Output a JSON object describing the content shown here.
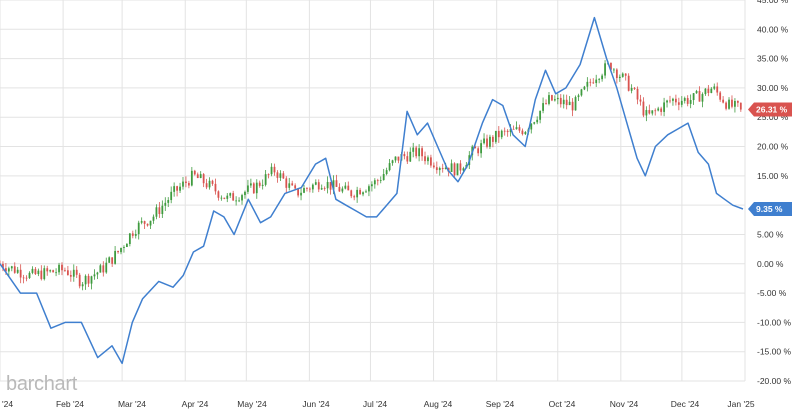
{
  "watermark": "barchart",
  "colors": {
    "up": "#3f9b3f",
    "down": "#d9534f",
    "line": "#3f7fcf",
    "grid": "#e3e3e3",
    "badge_red": "#d9534f",
    "badge_blue": "#3f7fcf"
  },
  "chart_data": {
    "type": "line",
    "title": "",
    "xlabel": "",
    "ylabel": "",
    "y_unit": "%",
    "ylim": [
      -20,
      45
    ],
    "y_ticks": [
      -20,
      -15,
      -10,
      -5,
      0,
      5,
      10,
      15,
      20,
      25,
      30,
      35,
      40,
      45
    ],
    "y_tick_labels": [
      "-20.00 %",
      "-15.00 %",
      "-10.00 %",
      "-5.00 %",
      "0.00 %",
      "5.00 %",
      "10.00 %",
      "15.00 %",
      "20.00 %",
      "25.00 %",
      "30.00 %",
      "35.00 %",
      "40.00 %",
      "45.00 %"
    ],
    "x_tick_labels": [
      "n '24",
      "Feb '24",
      "Mar '24",
      "Apr '24",
      "May '24",
      "Jun '24",
      "Jul '24",
      "Aug '24",
      "Sep '24",
      "Oct '24",
      "Nov '24",
      "Dec '24",
      "Jan '25"
    ],
    "grid": true,
    "series": [
      {
        "style": "candlestick",
        "color_up": "#3f9b3f",
        "color_down": "#d9534f",
        "last_label": "26.31 %",
        "last_value": 26.31,
        "x_start": "2024-01-02",
        "x_end": "2024-12-31",
        "anchors": [
          [
            0,
            0
          ],
          [
            15,
            -2
          ],
          [
            32,
            -1
          ],
          [
            40,
            -3
          ],
          [
            50,
            -1
          ],
          [
            58,
            2
          ],
          [
            66,
            6
          ],
          [
            75,
            8
          ],
          [
            85,
            12
          ],
          [
            95,
            15
          ],
          [
            100,
            14
          ],
          [
            112,
            11
          ],
          [
            125,
            13
          ],
          [
            135,
            16
          ],
          [
            145,
            12
          ],
          [
            158,
            14
          ],
          [
            172,
            12
          ],
          [
            185,
            14
          ],
          [
            195,
            18
          ],
          [
            205,
            19
          ],
          [
            215,
            17
          ],
          [
            225,
            16
          ],
          [
            232,
            19
          ],
          [
            245,
            22
          ],
          [
            258,
            23
          ],
          [
            270,
            28
          ],
          [
            282,
            27
          ],
          [
            292,
            32
          ],
          [
            300,
            34
          ],
          [
            310,
            30
          ],
          [
            318,
            25
          ],
          [
            330,
            28
          ],
          [
            340,
            28
          ],
          [
            350,
            30
          ],
          [
            358,
            27
          ],
          [
            365,
            26.31
          ]
        ]
      },
      {
        "style": "line",
        "color": "#3f7fcf",
        "last_label": "9.35 %",
        "last_value": 9.35,
        "x_start": "2024-01-02",
        "x_end": "2024-12-31",
        "points": [
          [
            0,
            0
          ],
          [
            10,
            -5
          ],
          [
            18,
            -5
          ],
          [
            25,
            -11
          ],
          [
            32,
            -10
          ],
          [
            40,
            -10
          ],
          [
            48,
            -16
          ],
          [
            55,
            -14
          ],
          [
            60,
            -17
          ],
          [
            65,
            -10
          ],
          [
            70,
            -6
          ],
          [
            78,
            -3
          ],
          [
            85,
            -4
          ],
          [
            90,
            -2
          ],
          [
            95,
            2
          ],
          [
            100,
            3
          ],
          [
            105,
            9
          ],
          [
            110,
            8
          ],
          [
            115,
            5
          ],
          [
            122,
            11
          ],
          [
            128,
            7
          ],
          [
            133,
            8
          ],
          [
            140,
            12
          ],
          [
            148,
            13
          ],
          [
            155,
            17
          ],
          [
            160,
            18
          ],
          [
            165,
            11
          ],
          [
            170,
            10
          ],
          [
            175,
            9
          ],
          [
            180,
            8
          ],
          [
            185,
            8
          ],
          [
            190,
            10
          ],
          [
            195,
            12
          ],
          [
            200,
            26
          ],
          [
            205,
            22
          ],
          [
            210,
            24
          ],
          [
            215,
            20
          ],
          [
            220,
            16
          ],
          [
            225,
            14
          ],
          [
            230,
            17
          ],
          [
            237,
            24
          ],
          [
            242,
            28
          ],
          [
            247,
            27
          ],
          [
            252,
            22
          ],
          [
            258,
            20
          ],
          [
            263,
            28
          ],
          [
            268,
            33
          ],
          [
            273,
            29
          ],
          [
            278,
            30
          ],
          [
            285,
            34
          ],
          [
            292,
            42
          ],
          [
            298,
            35
          ],
          [
            303,
            30
          ],
          [
            308,
            24
          ],
          [
            313,
            18
          ],
          [
            317,
            15
          ],
          [
            322,
            20
          ],
          [
            328,
            22
          ],
          [
            333,
            23
          ],
          [
            338,
            24
          ],
          [
            343,
            19
          ],
          [
            348,
            17
          ],
          [
            352,
            12
          ],
          [
            356,
            11
          ],
          [
            360,
            10
          ],
          [
            365,
            9.35
          ]
        ]
      }
    ]
  }
}
